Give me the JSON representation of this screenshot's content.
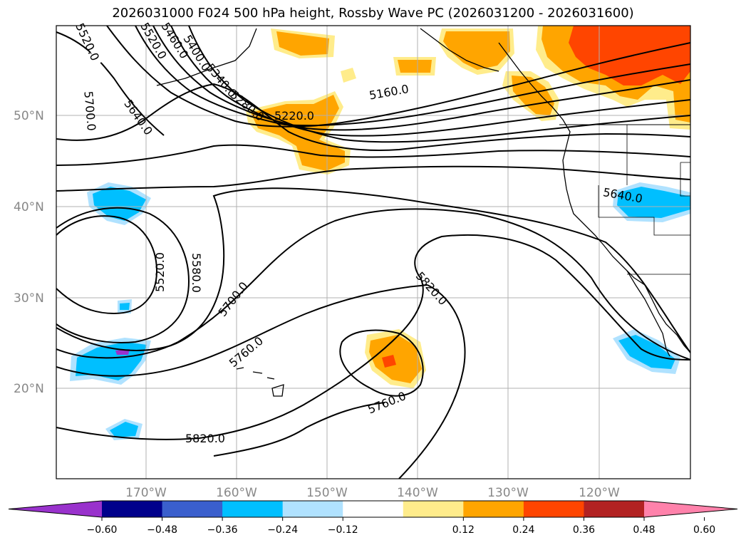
{
  "title": "2026031000 F024 500 hPa height, Rossby Wave PC (2026031200 - 2026031600)",
  "lat_labels": [
    "50°N",
    "40°N",
    "30°N",
    "20°N"
  ],
  "lon_labels": [
    "170°W",
    "160°W",
    "150°W",
    "140°W",
    "130°W",
    "120°W"
  ],
  "contour_labels": [
    "5520.0",
    "5460.0",
    "5400.0",
    "5340.0",
    "5280.0",
    "5220.0",
    "5160.0",
    "5700.0",
    "5640.0",
    "5640.0",
    "5520.0",
    "5580.0",
    "5700.0",
    "5760.0",
    "5820.0",
    "5760.0",
    "5820.0"
  ],
  "colorbar": {
    "ticks": [
      "−0.60",
      "−0.48",
      "−0.36",
      "−0.24",
      "−0.12",
      "0.12",
      "0.24",
      "0.36",
      "0.48",
      "0.60"
    ],
    "colors": [
      "#9932cc",
      "#00008b",
      "#3a5fcd",
      "#00bfff",
      "#b0e2ff",
      "#ffffff",
      "#ffec8b",
      "#ffa500",
      "#ff4500",
      "#b22222",
      "#ff82ab"
    ]
  },
  "colors": {
    "blue_anom": "#00bfff",
    "light_blue": "#b0e2ff",
    "orange": "#ffa500",
    "red": "#ff4500",
    "yellow": "#ffec8b",
    "purple": "#9932cc"
  }
}
